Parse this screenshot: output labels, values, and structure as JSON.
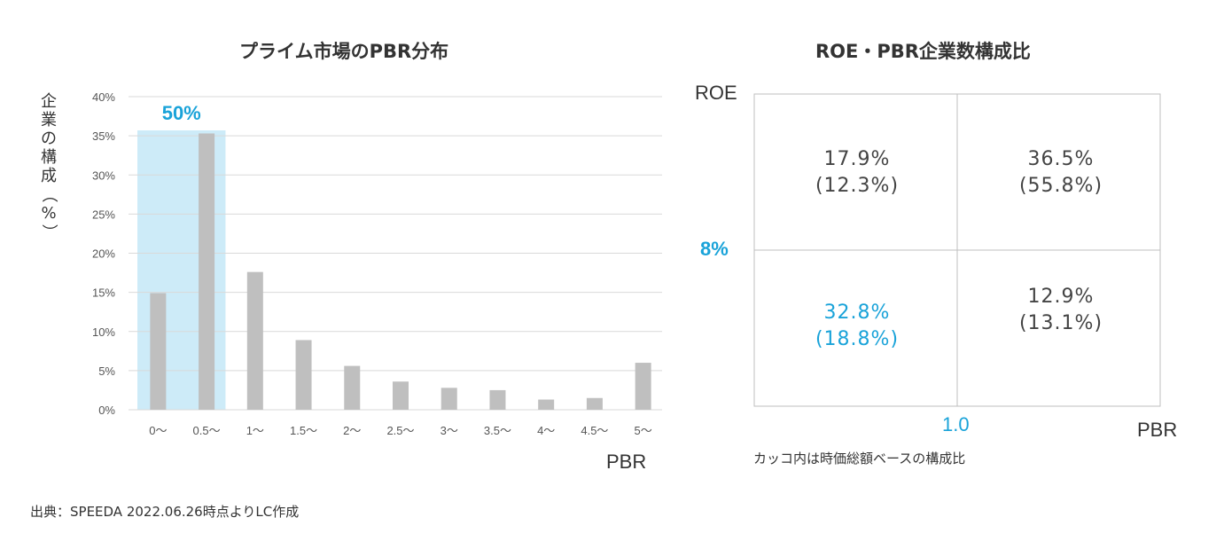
{
  "left": {
    "title": "プライム市場のPBR分布",
    "ylabel": "企業の構成（%）",
    "xlabel": "PBR",
    "highlight_label": "50%",
    "colors": {
      "bar": "#BFBFBF",
      "highlight": "#CDEBF8",
      "grid": "#D9D9D9",
      "accent": "#1AA3D9"
    }
  },
  "chart_data": [
    {
      "type": "bar",
      "title": "プライム市場のPBR分布",
      "xlabel": "PBR",
      "ylabel": "企業の構成（%）",
      "categories": [
        "0〜",
        "0.5〜",
        "1〜",
        "1.5〜",
        "2〜",
        "2.5〜",
        "3〜",
        "3.5〜",
        "4〜",
        "4.5〜",
        "5〜"
      ],
      "values": [
        14.9,
        35.3,
        17.6,
        8.9,
        5.6,
        3.6,
        2.8,
        2.5,
        1.3,
        1.5,
        6.0
      ],
      "yticks": [
        "0%",
        "5%",
        "10%",
        "15%",
        "20%",
        "25%",
        "30%",
        "35%",
        "40%"
      ],
      "ylim": [
        0,
        40
      ],
      "grid": true,
      "annotation": "50%"
    },
    {
      "type": "table",
      "title": "ROE・PBR企業数構成比",
      "xlabel": "PBR",
      "ylabel": "ROE",
      "x_threshold": "1.0",
      "y_threshold": "8%",
      "cells": {
        "top_left": [
          "17.9%",
          "(12.3%)"
        ],
        "top_right": [
          "36.5%",
          "(55.8%)"
        ],
        "bottom_left": [
          "32.8%",
          "(18.8%)"
        ],
        "bottom_right": [
          "12.9%",
          "(13.1%)"
        ]
      },
      "note": "カッコ内は時価総額ベースの構成比"
    }
  ],
  "right": {
    "title": "ROE・PBR企業数構成比",
    "ylabel": "ROE",
    "xlabel": "PBR",
    "y_threshold": "8%",
    "x_threshold": "1.0",
    "cells": {
      "tl": {
        "main": "17.9%",
        "sub": "(12.3%)"
      },
      "tr": {
        "main": "36.5%",
        "sub": "(55.8%)"
      },
      "bl": {
        "main": "32.8%",
        "sub": "(18.8%)"
      },
      "br": {
        "main": "12.9%",
        "sub": "(13.1%)"
      }
    },
    "note": "カッコ内は時価総額ベースの構成比"
  },
  "source": "出典：SPEEDA 2022.06.26時点よりLC作成"
}
